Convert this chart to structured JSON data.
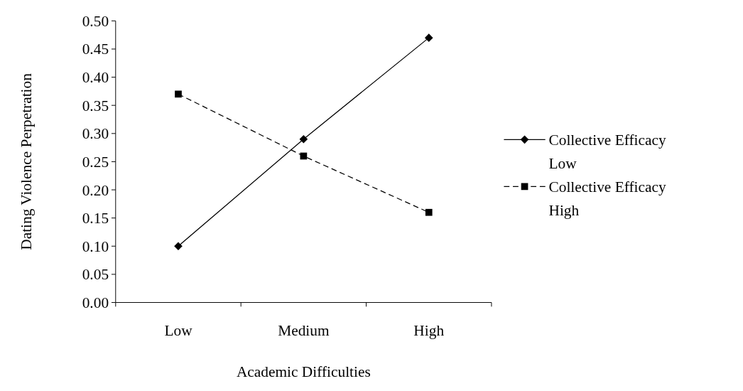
{
  "chart_data": {
    "type": "line",
    "xlabel": "Academic Difficulties",
    "ylabel": "Dating Violence Perpetration",
    "categories": [
      "Low",
      "Medium",
      "High"
    ],
    "series": [
      {
        "name": "Collective Efficacy Low",
        "color": "#000000",
        "values": [
          0.1,
          0.29,
          0.47
        ],
        "marker": "diamond",
        "line_style": "solid"
      },
      {
        "name": "Collective Efficacy High",
        "color": "#000000",
        "values": [
          0.37,
          0.26,
          0.16
        ],
        "marker": "square",
        "line_style": "dashed"
      }
    ],
    "ylim": [
      0,
      0.5
    ],
    "yticks": [
      {
        "value": 0,
        "label": "0.00"
      },
      {
        "value": 0.05,
        "label": "0.05"
      },
      {
        "value": 0.1,
        "label": "0.10"
      },
      {
        "value": 0.15,
        "label": "0.15"
      },
      {
        "value": 0.2,
        "label": "0.20"
      },
      {
        "value": 0.25,
        "label": "0.25"
      },
      {
        "value": 0.3,
        "label": "0.30"
      },
      {
        "value": 0.35,
        "label": "0.35"
      },
      {
        "value": 0.4,
        "label": "0.40"
      },
      {
        "value": 0.45,
        "label": "0.45"
      },
      {
        "value": 0.5,
        "label": "0.50"
      }
    ],
    "legend": "right",
    "grid": false
  }
}
